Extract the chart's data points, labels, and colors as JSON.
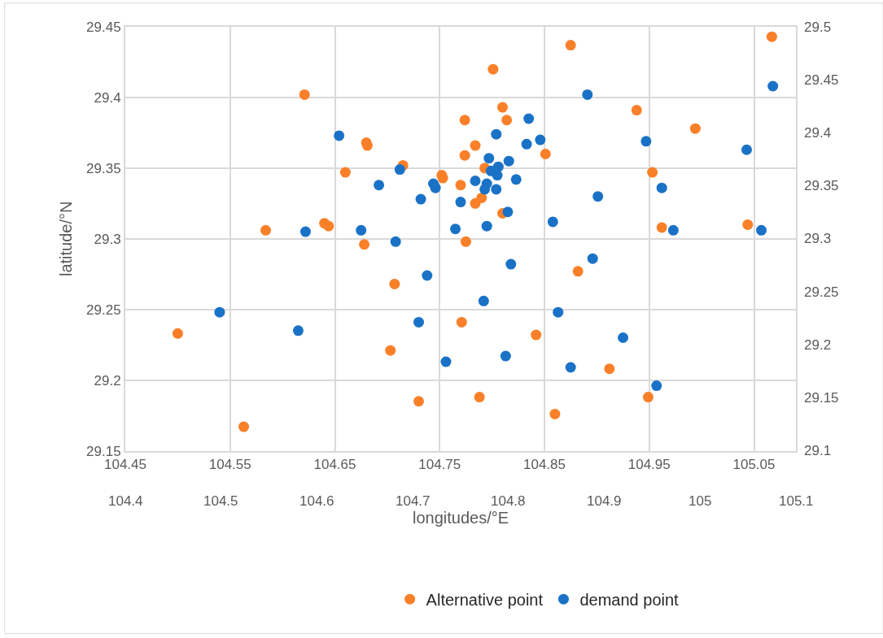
{
  "chart_data": {
    "type": "scatter",
    "xlabel": "longitudes/°E",
    "ylabel": "latitude/°N",
    "xlim": [
      104.45,
      105.09
    ],
    "xticks": [
      104.45,
      104.55,
      104.65,
      104.75,
      104.85,
      104.95,
      105.05
    ],
    "x2lim": [
      104.4,
      105.1
    ],
    "x2ticks": [
      104.4,
      104.5,
      104.6,
      104.7,
      104.8,
      104.9,
      105,
      105.1
    ],
    "ylim": [
      29.15,
      29.45
    ],
    "yticks": [
      29.15,
      29.2,
      29.25,
      29.3,
      29.35,
      29.4,
      29.45
    ],
    "y2lim": [
      29.1,
      29.5
    ],
    "y2ticks": [
      29.1,
      29.15,
      29.2,
      29.25,
      29.3,
      29.35,
      29.4,
      29.45,
      29.5
    ],
    "grid": true,
    "legend": "bottom",
    "marker": "circle",
    "series": [
      {
        "name": "Alternative point",
        "color": "#f98029",
        "x": [
          105.067,
          104.875,
          104.801,
          104.621,
          104.81,
          104.938,
          104.774,
          104.814,
          104.994,
          104.68,
          104.681,
          104.784,
          104.715,
          104.774,
          104.851,
          104.66,
          104.752,
          104.753,
          104.953,
          104.793,
          104.77,
          104.79,
          104.784,
          104.81,
          104.64,
          104.644,
          104.584,
          104.962,
          105.044,
          104.678,
          104.775,
          104.707,
          104.882,
          104.5,
          104.771,
          104.842,
          104.703,
          104.912,
          104.73,
          104.788,
          104.949,
          104.86,
          104.563
        ],
        "values": [
          29.443,
          29.437,
          29.42,
          29.402,
          29.393,
          29.391,
          29.384,
          29.384,
          29.378,
          29.368,
          29.366,
          29.366,
          29.352,
          29.359,
          29.36,
          29.347,
          29.345,
          29.343,
          29.347,
          29.35,
          29.338,
          29.329,
          29.325,
          29.318,
          29.311,
          29.309,
          29.306,
          29.308,
          29.31,
          29.296,
          29.298,
          29.268,
          29.277,
          29.233,
          29.241,
          29.232,
          29.221,
          29.208,
          29.185,
          29.188,
          29.188,
          29.176,
          29.167
        ]
      },
      {
        "name": "demand point",
        "color": "#1a72c7",
        "x": [
          105.068,
          104.891,
          104.654,
          104.804,
          104.835,
          104.846,
          104.833,
          104.947,
          104.797,
          104.816,
          104.806,
          105.043,
          104.962,
          104.799,
          104.805,
          104.823,
          104.784,
          104.795,
          104.793,
          104.804,
          104.77,
          104.795,
          104.815,
          104.765,
          104.858,
          104.901,
          104.973,
          105.057,
          104.692,
          104.712,
          104.732,
          104.744,
          104.746,
          104.622,
          104.675,
          104.708,
          104.54,
          104.615,
          104.738,
          104.73,
          104.756,
          104.818,
          104.792,
          104.863,
          104.896,
          104.925,
          104.813,
          104.875,
          104.957
        ],
        "values": [
          29.408,
          29.402,
          29.373,
          29.374,
          29.385,
          29.37,
          29.367,
          29.369,
          29.357,
          29.355,
          29.351,
          29.363,
          29.336,
          29.348,
          29.345,
          29.342,
          29.341,
          29.339,
          29.335,
          29.335,
          29.326,
          29.309,
          29.319,
          29.307,
          29.312,
          29.33,
          29.306,
          29.306,
          29.338,
          29.349,
          29.328,
          29.339,
          29.336,
          29.305,
          29.306,
          29.298,
          29.248,
          29.235,
          29.274,
          29.241,
          29.213,
          29.282,
          29.256,
          29.248,
          29.286,
          29.23,
          29.217,
          29.209,
          29.196
        ]
      }
    ]
  }
}
